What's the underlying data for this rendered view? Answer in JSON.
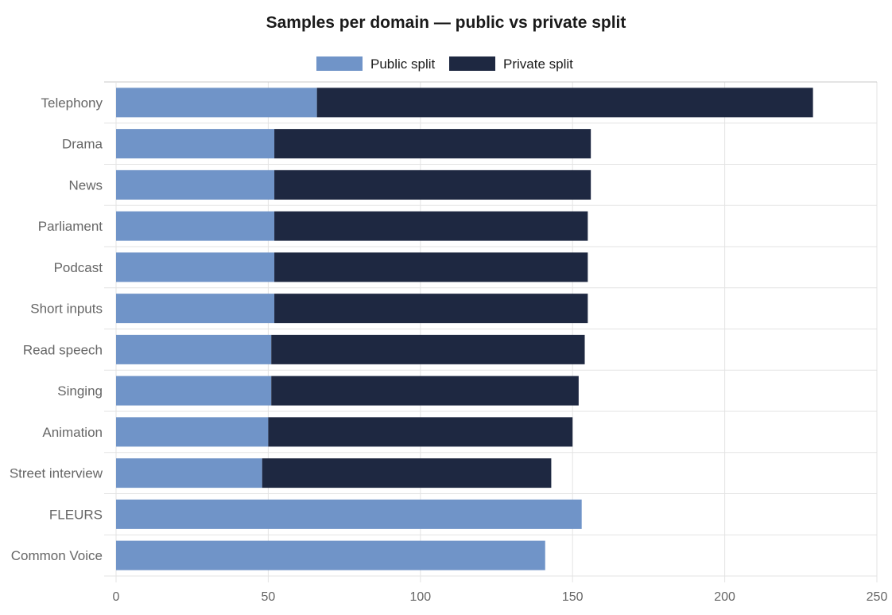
{
  "chart_data": {
    "type": "bar",
    "orientation": "horizontal",
    "stacked": true,
    "title": "Samples per domain — public vs private split",
    "xlabel": "",
    "ylabel": "",
    "xlim": [
      0,
      250
    ],
    "x_ticks": [
      0,
      50,
      100,
      150,
      200,
      250
    ],
    "grid": true,
    "legend_position": "top-center",
    "categories": [
      "Telephony",
      "Drama",
      "News",
      "Parliament",
      "Podcast",
      "Short inputs",
      "Read speech",
      "Singing",
      "Animation",
      "Street interview",
      "FLEURS",
      "Common Voice"
    ],
    "series": [
      {
        "name": "Public split",
        "color": "#7094c8",
        "values": [
          66,
          52,
          52,
          52,
          52,
          52,
          51,
          51,
          50,
          48,
          153,
          141
        ]
      },
      {
        "name": "Private split",
        "color": "#1e2841",
        "values": [
          163,
          104,
          104,
          103,
          103,
          103,
          103,
          101,
          100,
          95,
          0,
          0
        ]
      }
    ]
  }
}
